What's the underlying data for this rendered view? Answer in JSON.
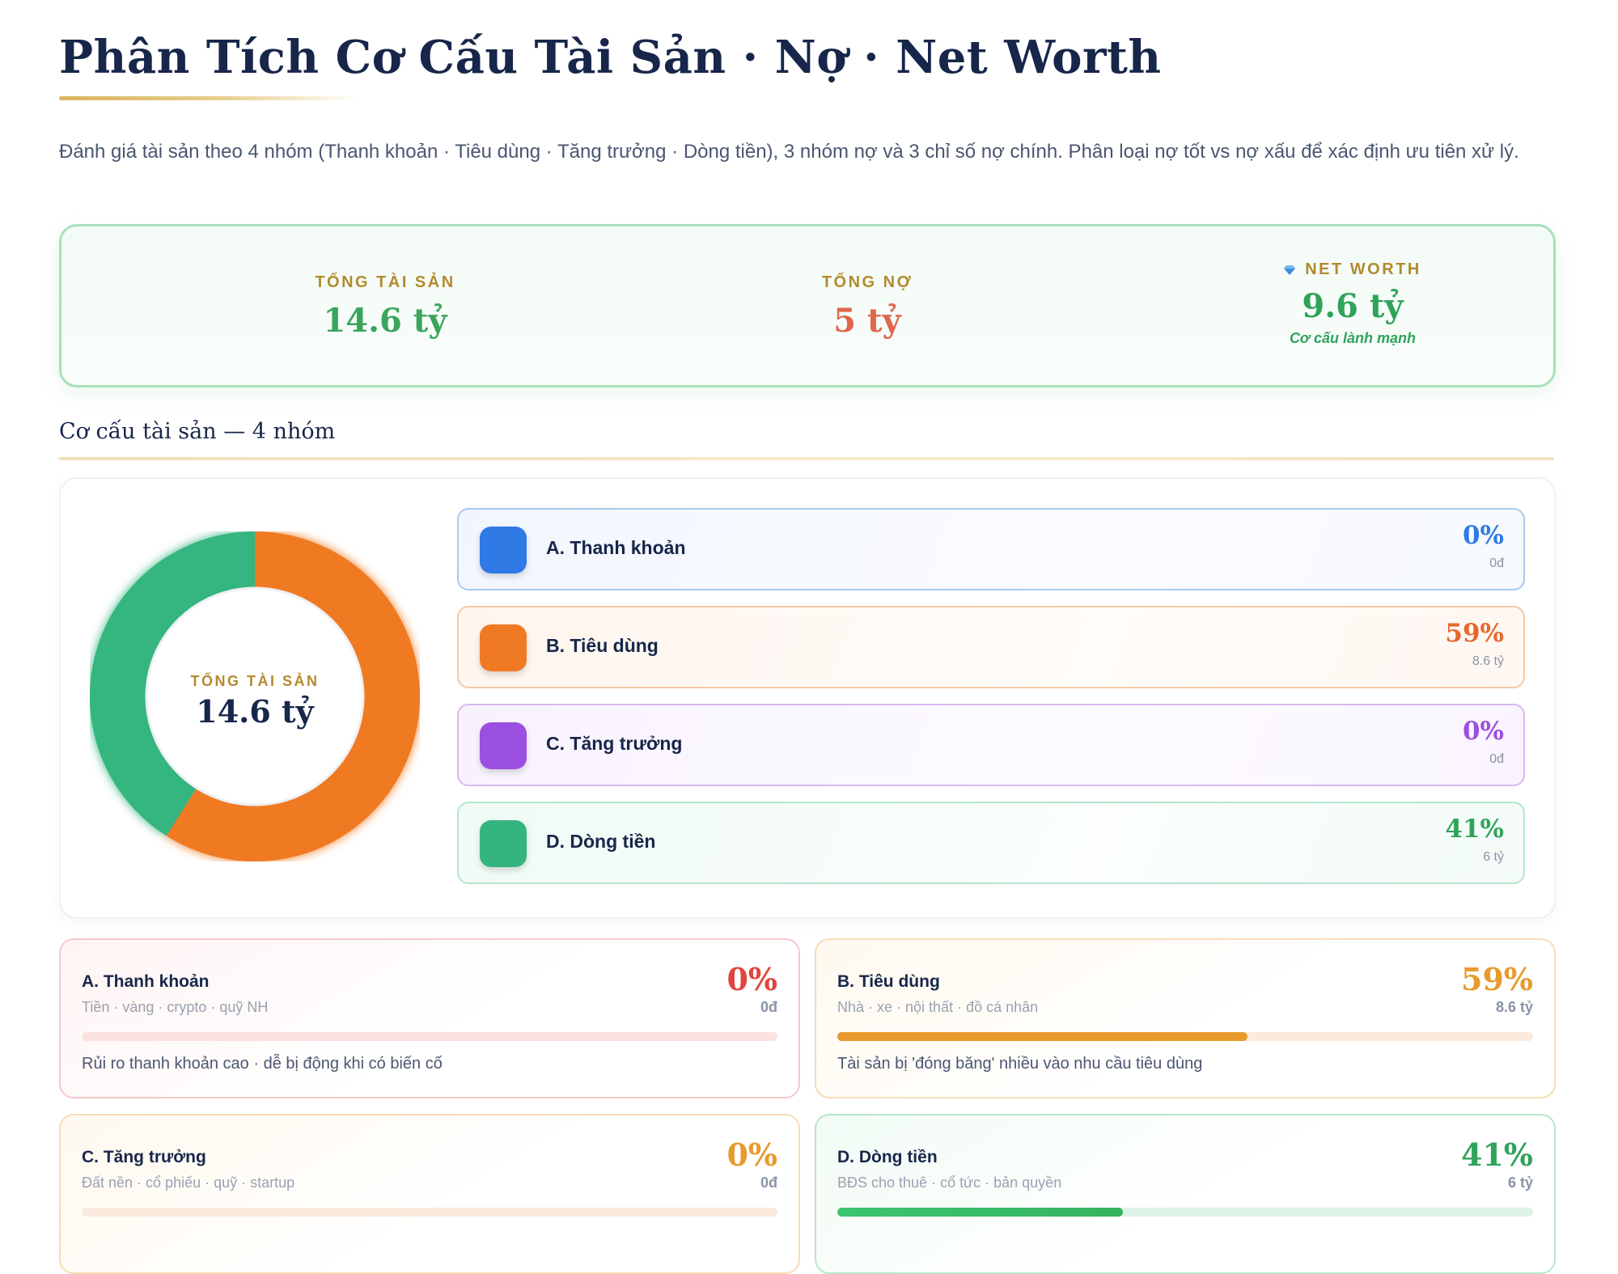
{
  "header": {
    "title": "Phân Tích Cơ Cấu Tài Sản · Nợ · Net Worth",
    "intro": "Đánh giá tài sản theo 4 nhóm (Thanh khoản · Tiêu dùng · Tăng trưởng · Dòng tiền), 3 nhóm nợ và 3 chỉ số nợ chính. Phân loại nợ tốt vs nợ xấu để xác định ưu tiên xử lý."
  },
  "summary": {
    "assets_label": "TỔNG TÀI SẢN",
    "assets_value": "14.6 tỷ",
    "debt_label": "TỔNG NỢ",
    "debt_value": "5 tỷ",
    "networth_icon": "diamond-icon",
    "networth_label": "NET WORTH",
    "networth_value": "9.6 tỷ",
    "networth_note": "Cơ cấu lành mạnh",
    "colors": {
      "assets": "#3aa55c",
      "debt": "#e0674c",
      "networth": "#2fa35a"
    }
  },
  "structure": {
    "section_title": "Cơ cấu tài sản — 4 nhóm",
    "donut_label": "TỔNG TÀI SẢN",
    "donut_value": "14.6 tỷ",
    "groups": [
      {
        "name": "A. Thanh khoản",
        "pct": "0%",
        "amount": "0đ",
        "share": 0,
        "color": "#2f7ae5"
      },
      {
        "name": "B. Tiêu dùng",
        "pct": "59%",
        "amount": "8.6 tỷ",
        "share": 59,
        "color": "#f07a24"
      },
      {
        "name": "C. Tăng trưởng",
        "pct": "0%",
        "amount": "0đ",
        "share": 0,
        "color": "#9b4fe0"
      },
      {
        "name": "D. Dòng tiền",
        "pct": "41%",
        "amount": "6 tỷ",
        "share": 41,
        "color": "#34b57f"
      }
    ]
  },
  "details": [
    {
      "name": "A. Thanh khoản",
      "sub": "Tiền · vàng · crypto · quỹ NH",
      "pct": "0%",
      "amount": "0đ",
      "progress": 0,
      "note": "Rủi ro thanh khoản cao · dễ bị động khi có biến cố",
      "color": "#e0443e"
    },
    {
      "name": "B. Tiêu dùng",
      "sub": "Nhà · xe · nội thất · đồ cá nhân",
      "pct": "59%",
      "amount": "8.6 tỷ",
      "progress": 59,
      "note": "Tài sản bị 'đóng băng' nhiều vào nhu cầu tiêu dùng",
      "color": "#e89a2c"
    },
    {
      "name": "C. Tăng trưởng",
      "sub": "Đất nền · cổ phiếu · quỹ · startup",
      "pct": "0%",
      "amount": "0đ",
      "progress": 0,
      "note": "",
      "color": "#e89a2c"
    },
    {
      "name": "D. Dòng tiền",
      "sub": "BĐS cho thuê · cổ tức · bản quyền",
      "pct": "41%",
      "amount": "6 tỷ",
      "progress": 41,
      "note": "",
      "color": "#2fa35a"
    }
  ]
}
